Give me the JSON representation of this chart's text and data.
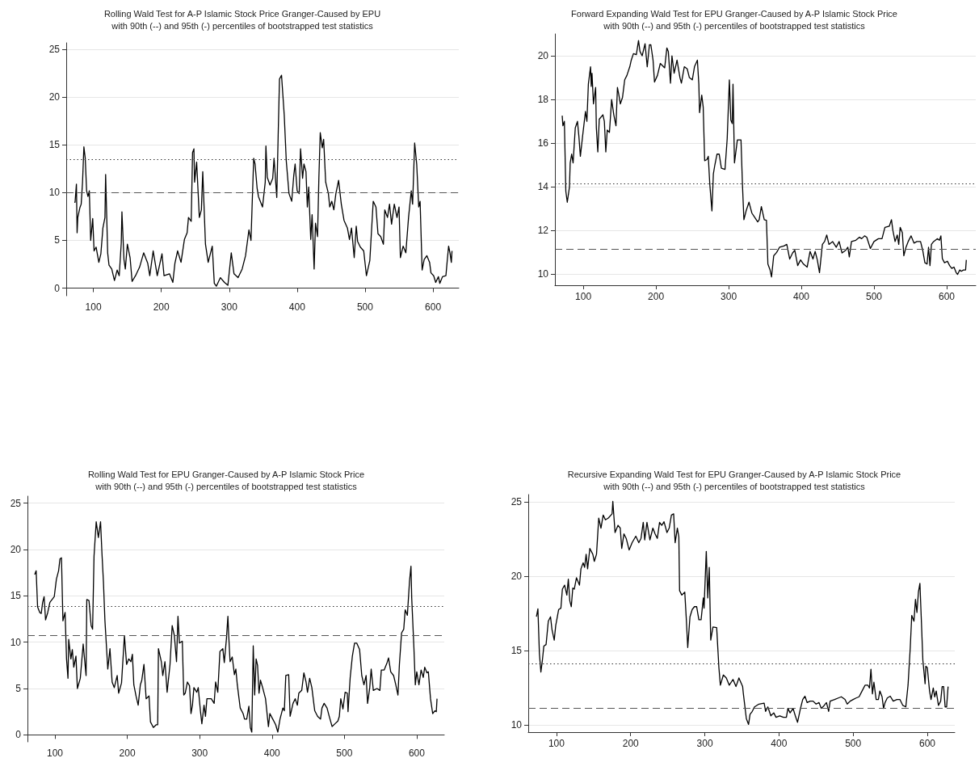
{
  "chart_data": [
    {
      "type": "line",
      "title": "Rolling Wald Test for A-P Islamic Stock Price Granger-Caused by EPU",
      "subtitle": "with 90th (--) and 95th (-) percentiles of bootstrapped test statistics",
      "marker": "none",
      "grid": "y",
      "xlim": [
        60,
        638
      ],
      "ylim": [
        -0.8,
        25.7
      ],
      "xticks": [
        100,
        200,
        300,
        400,
        500,
        600
      ],
      "yticks": [
        0,
        5,
        10,
        15,
        20,
        25
      ],
      "ref_lines": [
        {
          "axis": "y",
          "value": 13.5,
          "line_style": "dotted",
          "color": "#333333"
        },
        {
          "axis": "y",
          "value": 10.05,
          "line_style": "dashed",
          "color": "#555555"
        }
      ],
      "series": [
        {
          "color": "#000000",
          "x": [
            72,
            73,
            75,
            76,
            77,
            80,
            82,
            84,
            86,
            88,
            90,
            92,
            94,
            96,
            99,
            101,
            104,
            108,
            111,
            114,
            117,
            118,
            121,
            123,
            127,
            131,
            135,
            138,
            141,
            142,
            145,
            147,
            150,
            154,
            157,
            162,
            168,
            174,
            180,
            183,
            188,
            194,
            201,
            204,
            212,
            217,
            220,
            224,
            229,
            234,
            238,
            240,
            244,
            246,
            248,
            249,
            252,
            256,
            259,
            261,
            265,
            269,
            275,
            278,
            281,
            287,
            293,
            298,
            303,
            307,
            313,
            319,
            324,
            329,
            332,
            336,
            338,
            341,
            343,
            349,
            353,
            354,
            356,
            360,
            364,
            366,
            370,
            372,
            374,
            377,
            379,
            381,
            384,
            388,
            392,
            395,
            397,
            400,
            403,
            405,
            408,
            410,
            413,
            415,
            417,
            420,
            422,
            425,
            427,
            430,
            432,
            434,
            437,
            439,
            442,
            446,
            448,
            451,
            454,
            457,
            461,
            465,
            469,
            474,
            477,
            480,
            484,
            487,
            489,
            493,
            498,
            502,
            507,
            509,
            512,
            516,
            519,
            523,
            527,
            529,
            533,
            536,
            539,
            543,
            547,
            550,
            552,
            556,
            560,
            564,
            568,
            570,
            573,
            576,
            579,
            581,
            584,
            587,
            591,
            595,
            597,
            601,
            604,
            608,
            610,
            614,
            619,
            621,
            623,
            625,
            627,
            628
          ],
          "values": [
            9.0,
            9.0,
            10.9,
            5.8,
            7.4,
            8.4,
            8.8,
            11.1,
            14.8,
            13.6,
            10.2,
            9.6,
            10.2,
            5.0,
            7.3,
            3.9,
            4.3,
            2.7,
            3.6,
            6.3,
            7.4,
            11.9,
            3.7,
            2.4,
            2.0,
            0.8,
            1.9,
            1.3,
            4.7,
            8.0,
            3.0,
            2.0,
            4.6,
            3.2,
            0.7,
            1.3,
            2.2,
            3.7,
            2.6,
            1.3,
            3.9,
            1.3,
            3.6,
            1.3,
            1.5,
            0.6,
            2.6,
            3.9,
            2.7,
            5.1,
            5.8,
            7.4,
            7.0,
            14.2,
            14.6,
            11.1,
            13.2,
            7.4,
            8.2,
            12.2,
            4.6,
            2.7,
            4.4,
            0.5,
            0.2,
            1.1,
            0.6,
            0.3,
            3.7,
            1.5,
            1.1,
            2.0,
            3.4,
            6.1,
            5.0,
            13.6,
            13.0,
            10.5,
            9.6,
            8.5,
            11.1,
            14.9,
            11.6,
            10.8,
            11.5,
            13.6,
            9.5,
            15.9,
            21.9,
            22.3,
            20.2,
            18.1,
            13.3,
            9.9,
            9.1,
            11.8,
            13.0,
            10.2,
            9.9,
            14.6,
            11.5,
            13.0,
            12.2,
            8.5,
            10.6,
            5.1,
            7.7,
            2.0,
            6.8,
            5.4,
            11.6,
            16.3,
            14.7,
            15.6,
            11.1,
            9.9,
            8.5,
            9.1,
            8.2,
            9.9,
            11.3,
            8.8,
            7.1,
            6.3,
            5.1,
            6.3,
            3.2,
            6.5,
            4.9,
            4.3,
            3.9,
            1.3,
            2.9,
            5.4,
            9.1,
            8.5,
            5.7,
            5.4,
            4.6,
            8.2,
            7.4,
            8.8,
            6.7,
            8.8,
            7.4,
            8.5,
            3.2,
            4.4,
            3.7,
            7.4,
            10.2,
            8.8,
            15.2,
            13.0,
            8.5,
            9.1,
            1.9,
            3.0,
            3.4,
            2.7,
            1.6,
            1.3,
            0.6,
            1.2,
            0.5,
            1.2,
            1.3,
            2.9,
            4.4,
            3.7,
            2.7,
            3.9
          ]
        }
      ]
    },
    {
      "type": "line",
      "title": "Forward Expanding Wald Test for EPU Granger-Caused by A-P Islamic Stock Price",
      "subtitle": "with 90th (--) and 95th (-) percentiles of bootstrapped test statistics",
      "marker": "none",
      "grid": "y",
      "xlim": [
        61,
        640
      ],
      "ylim": [
        9.5,
        21
      ],
      "xticks": [
        100,
        200,
        300,
        400,
        500,
        600
      ],
      "yticks": [
        10,
        12,
        14,
        16,
        18,
        20
      ],
      "ref_lines": [
        {
          "axis": "y",
          "value": 14.14,
          "line_style": "dotted",
          "color": "#333333"
        },
        {
          "axis": "y",
          "value": 11.15,
          "line_style": "dashed",
          "color": "#555555"
        }
      ],
      "series": [
        {
          "color": "#000000",
          "x": [
            71,
            72,
            74,
            76,
            78,
            81,
            82,
            84,
            86,
            89,
            92,
            94,
            96,
            99,
            103,
            105,
            107,
            110,
            111,
            112,
            114,
            117,
            118,
            120,
            122,
            127,
            129,
            131,
            133,
            136,
            139,
            142,
            145,
            147,
            149,
            151,
            154,
            157,
            160,
            164,
            166,
            169,
            173,
            176,
            178,
            181,
            185,
            188,
            191,
            193,
            196,
            198,
            202,
            206,
            212,
            215,
            217,
            220,
            222,
            225,
            229,
            233,
            235,
            239,
            243,
            246,
            250,
            253,
            257,
            259,
            260,
            263,
            265,
            267,
            270,
            272,
            274,
            277,
            279,
            281,
            284,
            287,
            290,
            295,
            298,
            301,
            303,
            305,
            306,
            308,
            312,
            317,
            319,
            321,
            324,
            328,
            332,
            336,
            340,
            342,
            345,
            349,
            352,
            354,
            357,
            359,
            362,
            366,
            370,
            376,
            380,
            384,
            388,
            391,
            395,
            399,
            403,
            408,
            412,
            416,
            419,
            422,
            425,
            429,
            432,
            435,
            438,
            443,
            448,
            452,
            456,
            461,
            464,
            466,
            469,
            475,
            480,
            483,
            487,
            490,
            495,
            500,
            506,
            511,
            515,
            521,
            524,
            526,
            529,
            532,
            534,
            536,
            539,
            541,
            544,
            547,
            551,
            555,
            559,
            564,
            567,
            570,
            573,
            575,
            577,
            579,
            582,
            587,
            590,
            592,
            594,
            597,
            601,
            604,
            607,
            610,
            613,
            615,
            618,
            620,
            623,
            626,
            627
          ],
          "values": [
            17.26,
            16.8,
            17.0,
            13.8,
            13.3,
            14.0,
            15.1,
            15.5,
            15.1,
            16.7,
            17.0,
            16.3,
            15.4,
            16.3,
            17.45,
            17.0,
            18.7,
            19.5,
            18.6,
            19.2,
            17.8,
            18.55,
            16.7,
            15.6,
            17.1,
            17.3,
            17.0,
            15.6,
            16.6,
            16.5,
            18.0,
            17.3,
            16.8,
            18.55,
            18.2,
            17.8,
            18.1,
            18.9,
            19.1,
            19.5,
            19.8,
            20.1,
            20.05,
            20.7,
            20.2,
            20.0,
            20.55,
            19.5,
            20.5,
            20.5,
            19.8,
            18.8,
            19.1,
            19.65,
            19.45,
            20.36,
            20.2,
            18.75,
            20.0,
            19.2,
            19.8,
            19.0,
            18.75,
            19.5,
            19.4,
            19.0,
            18.9,
            19.5,
            19.8,
            18.7,
            17.4,
            18.2,
            17.65,
            15.2,
            15.25,
            15.4,
            14.15,
            12.9,
            14.6,
            15.0,
            15.5,
            15.5,
            14.86,
            14.8,
            16.2,
            18.9,
            17.06,
            16.9,
            18.7,
            15.1,
            16.15,
            16.15,
            14.1,
            12.5,
            12.9,
            13.3,
            12.8,
            12.6,
            12.4,
            12.5,
            13.1,
            12.5,
            12.47,
            10.47,
            10.2,
            9.88,
            10.85,
            11.0,
            11.24,
            11.3,
            11.37,
            10.7,
            10.98,
            11.1,
            10.4,
            10.66,
            10.47,
            10.33,
            11.05,
            10.7,
            11.05,
            10.66,
            10.08,
            11.37,
            11.5,
            11.8,
            11.37,
            11.5,
            11.24,
            11.5,
            10.98,
            11.1,
            11.24,
            10.8,
            11.5,
            11.56,
            11.7,
            11.63,
            11.76,
            11.7,
            11.18,
            11.5,
            11.63,
            11.63,
            12.15,
            12.2,
            12.5,
            12.0,
            11.5,
            11.8,
            11.37,
            12.15,
            11.9,
            10.85,
            11.24,
            11.5,
            11.76,
            11.43,
            11.5,
            11.5,
            11.1,
            10.53,
            10.47,
            11.24,
            10.4,
            11.37,
            11.5,
            11.63,
            11.56,
            11.76,
            10.72,
            10.53,
            10.6,
            10.4,
            10.27,
            10.33,
            10.08,
            10.0,
            10.2,
            10.14,
            10.2,
            10.2,
            10.66
          ]
        }
      ]
    },
    {
      "type": "line",
      "title": "Rolling Wald Test for EPU Granger-Caused by A-P Islamic Stock Price",
      "subtitle": "with 90th (--) and 95th (-) percentiles of bootstrapped test statistics",
      "marker": "none",
      "grid": "y",
      "xlim": [
        62,
        638
      ],
      "ylim": [
        -0.75,
        25.75
      ],
      "xticks": [
        100,
        200,
        300,
        400,
        500,
        600
      ],
      "yticks": [
        0,
        5,
        10,
        15,
        20,
        25
      ],
      "ref_lines": [
        {
          "axis": "y",
          "value": 13.84,
          "line_style": "dotted",
          "color": "#333333"
        },
        {
          "axis": "y",
          "value": 10.72,
          "line_style": "dashed",
          "color": "#555555"
        }
      ],
      "series": [
        {
          "color": "#000000",
          "x": [
            72,
            74,
            76,
            79,
            81,
            83,
            85,
            87,
            90,
            93,
            96,
            99,
            102,
            105,
            107,
            109,
            111,
            114,
            116,
            118,
            119,
            122,
            124,
            126,
            129,
            131,
            135,
            139,
            143,
            144,
            147,
            150,
            152,
            154,
            157,
            160,
            163,
            165,
            167,
            169,
            173,
            176,
            179,
            182,
            186,
            188,
            192,
            196,
            199,
            202,
            205,
            207,
            209,
            212,
            215,
            218,
            220,
            223,
            226,
            230,
            232,
            236,
            240,
            242,
            243,
            247,
            249,
            252,
            255,
            259,
            262,
            265,
            268,
            270,
            272,
            276,
            278,
            280,
            283,
            286,
            288,
            290,
            292,
            296,
            298,
            301,
            303,
            306,
            308,
            310,
            316,
            320,
            322,
            325,
            328,
            332,
            334,
            337,
            339,
            340,
            342,
            345,
            348,
            350,
            352,
            356,
            360,
            362,
            365,
            368,
            370,
            372,
            374,
            376,
            378,
            380,
            382,
            384,
            387,
            391,
            395,
            397,
            401,
            405,
            408,
            411,
            415,
            417,
            419,
            423,
            425,
            429,
            432,
            435,
            437,
            441,
            444,
            447,
            449,
            452,
            455,
            459,
            463,
            467,
            469,
            472,
            476,
            479,
            483,
            487,
            491,
            493,
            495,
            498,
            501,
            504,
            505,
            508,
            511,
            514,
            517,
            521,
            524,
            527,
            530,
            532,
            535,
            537,
            540,
            545,
            549,
            551,
            555,
            559,
            561,
            564,
            568,
            571,
            574,
            576,
            579,
            582,
            584,
            587,
            590,
            592,
            593,
            596,
            598,
            600,
            603,
            606,
            609,
            611,
            614,
            616,
            619,
            622,
            625,
            627,
            628
          ],
          "values": [
            17.3,
            17.7,
            13.8,
            13.2,
            13.1,
            14.3,
            14.9,
            12.4,
            13.2,
            14.3,
            14.6,
            14.9,
            16.8,
            17.7,
            19.0,
            19.1,
            12.3,
            13.2,
            8.2,
            6.1,
            10.3,
            8.2,
            9.2,
            7.3,
            8.5,
            5.0,
            6.1,
            9.8,
            6.4,
            14.6,
            14.5,
            11.8,
            11.4,
            19.3,
            23.0,
            21.3,
            23.0,
            19.5,
            16.5,
            12.4,
            7.1,
            9.3,
            5.7,
            5.1,
            6.4,
            4.5,
            5.6,
            10.7,
            7.6,
            8.2,
            7.9,
            8.7,
            5.4,
            4.2,
            3.2,
            5.4,
            5.9,
            7.6,
            3.9,
            4.2,
            1.4,
            0.8,
            1.1,
            1.1,
            9.3,
            7.9,
            6.4,
            7.9,
            4.6,
            7.6,
            11.8,
            10.7,
            7.9,
            12.8,
            9.9,
            10.1,
            4.3,
            4.5,
            5.7,
            5.3,
            2.3,
            3.2,
            5.1,
            4.6,
            5.1,
            2.6,
            1.2,
            3.2,
            2.0,
            3.9,
            3.9,
            3.4,
            5.7,
            4.6,
            9.0,
            9.3,
            7.8,
            10.4,
            12.8,
            10.9,
            7.9,
            8.4,
            6.5,
            7.1,
            5.4,
            2.9,
            2.3,
            1.7,
            1.7,
            3.1,
            0.8,
            0.3,
            9.6,
            4.3,
            8.2,
            7.5,
            4.5,
            5.9,
            5.1,
            3.9,
            0.9,
            2.3,
            1.7,
            1.1,
            0.3,
            1.7,
            2.9,
            2.6,
            6.4,
            6.5,
            2.0,
            3.4,
            3.9,
            3.2,
            4.5,
            4.8,
            6.7,
            5.7,
            4.6,
            6.1,
            5.1,
            2.6,
            2.0,
            1.7,
            2.9,
            3.4,
            2.9,
            2.0,
            0.9,
            1.2,
            1.5,
            2.0,
            3.9,
            2.8,
            4.6,
            4.5,
            2.5,
            6.2,
            8.5,
            9.9,
            9.9,
            9.2,
            6.4,
            5.4,
            6.4,
            3.4,
            5.1,
            7.1,
            4.8,
            5.0,
            4.8,
            7.0,
            7.0,
            7.8,
            8.3,
            6.8,
            6.4,
            5.4,
            4.3,
            7.6,
            11.0,
            11.4,
            13.5,
            12.9,
            16.6,
            18.2,
            14.8,
            9.5,
            5.4,
            6.8,
            5.4,
            7.0,
            6.2,
            7.3,
            6.7,
            6.8,
            3.9,
            2.3,
            2.6,
            2.5,
            3.9
          ]
        }
      ]
    },
    {
      "type": "line",
      "title": "Recursive Expanding Wald Test for EPU Granger-Caused by A-P Islamic Stock Price",
      "subtitle": "with 90th (--) and 95th (-) percentiles of bootstrapped test statistics",
      "marker": "none",
      "grid": "y",
      "xlim": [
        62,
        637
      ],
      "ylim": [
        9.5,
        25.5
      ],
      "xticks": [
        100,
        200,
        300,
        400,
        500,
        600
      ],
      "yticks": [
        10,
        15,
        20,
        25
      ],
      "ref_lines": [
        {
          "axis": "y",
          "value": 14.13,
          "line_style": "dotted",
          "color": "#333333"
        },
        {
          "axis": "y",
          "value": 11.14,
          "line_style": "dashed",
          "color": "#555555"
        }
      ],
      "series": [
        {
          "color": "#000000",
          "x": [
            73,
            75,
            77,
            79,
            81,
            83,
            86,
            89,
            92,
            94,
            97,
            99,
            103,
            106,
            108,
            111,
            114,
            116,
            118,
            120,
            122,
            124,
            127,
            131,
            133,
            136,
            138,
            140,
            142,
            145,
            149,
            151,
            154,
            157,
            160,
            163,
            166,
            170,
            175,
            176,
            179,
            183,
            186,
            188,
            191,
            194,
            198,
            202,
            207,
            211,
            214,
            217,
            219,
            222,
            226,
            230,
            233,
            236,
            239,
            242,
            245,
            249,
            252,
            255,
            258,
            260,
            263,
            265,
            266,
            269,
            273,
            275,
            277,
            280,
            283,
            286,
            289,
            292,
            295,
            298,
            299,
            302,
            304,
            306,
            308,
            311,
            316,
            319,
            321,
            325,
            329,
            333,
            338,
            342,
            346,
            351,
            352,
            356,
            359,
            361,
            364,
            367,
            373,
            380,
            382,
            385,
            389,
            393,
            396,
            401,
            406,
            410,
            412,
            415,
            419,
            422,
            425,
            429,
            432,
            435,
            438,
            442,
            446,
            450,
            454,
            457,
            461,
            464,
            467,
            469,
            475,
            480,
            484,
            489,
            492,
            496,
            500,
            504,
            508,
            512,
            516,
            520,
            522,
            524,
            526,
            528,
            531,
            534,
            536,
            539,
            541,
            543,
            546,
            550,
            554,
            559,
            563,
            567,
            571,
            574,
            577,
            579,
            582,
            584,
            586,
            588,
            590,
            592,
            594,
            597,
            598,
            600,
            603,
            605,
            608,
            610,
            612,
            615,
            618,
            620,
            622,
            624,
            626,
            628
          ],
          "values": [
            17.27,
            17.8,
            14.8,
            13.55,
            14.33,
            15.3,
            15.4,
            16.97,
            17.27,
            16.4,
            15.7,
            16.68,
            17.76,
            17.85,
            19.13,
            19.4,
            18.73,
            19.8,
            18.34,
            17.95,
            19.2,
            19.13,
            19.9,
            19.4,
            20.5,
            20.9,
            20.6,
            21.48,
            20.5,
            21.87,
            21.48,
            21.0,
            21.48,
            23.92,
            23.24,
            24.12,
            23.8,
            23.92,
            24.2,
            25.04,
            22.94,
            23.43,
            23.24,
            21.87,
            22.85,
            22.55,
            21.77,
            22.26,
            22.7,
            22.26,
            22.55,
            23.63,
            22.45,
            23.63,
            22.45,
            23.24,
            22.85,
            22.55,
            23.63,
            23.43,
            23.67,
            22.94,
            23.24,
            24.12,
            24.2,
            22.26,
            23.24,
            22.65,
            19.03,
            18.73,
            18.93,
            17.17,
            15.2,
            17.27,
            17.76,
            17.95,
            17.95,
            17.07,
            17.07,
            18.54,
            17.85,
            21.67,
            18.54,
            20.6,
            15.7,
            16.58,
            16.54,
            13.84,
            12.66,
            13.35,
            13.15,
            12.66,
            13.05,
            12.57,
            13.15,
            12.57,
            12.08,
            10.41,
            10.02,
            10.7,
            10.9,
            11.2,
            11.39,
            11.45,
            10.9,
            11.2,
            10.6,
            10.8,
            10.5,
            10.6,
            10.5,
            10.5,
            11.1,
            10.8,
            11.1,
            10.6,
            10.16,
            11.1,
            11.7,
            11.92,
            11.49,
            11.59,
            11.59,
            11.39,
            11.49,
            11.1,
            11.3,
            11.49,
            10.9,
            11.59,
            11.7,
            11.8,
            11.88,
            11.7,
            11.39,
            11.59,
            11.7,
            11.8,
            11.88,
            12.27,
            12.66,
            12.66,
            12.47,
            13.74,
            12.08,
            12.86,
            11.7,
            11.7,
            12.27,
            11.88,
            11.1,
            11.49,
            11.8,
            11.92,
            11.59,
            11.7,
            11.7,
            11.3,
            11.2,
            12.66,
            15.2,
            17.36,
            16.97,
            18.44,
            17.56,
            18.93,
            19.52,
            16.97,
            14.33,
            12.76,
            13.94,
            13.84,
            12.27,
            11.7,
            12.47,
            11.88,
            12.27,
            11.3,
            11.59,
            12.57,
            12.57,
            11.2,
            11.2,
            12.57
          ]
        }
      ]
    }
  ]
}
